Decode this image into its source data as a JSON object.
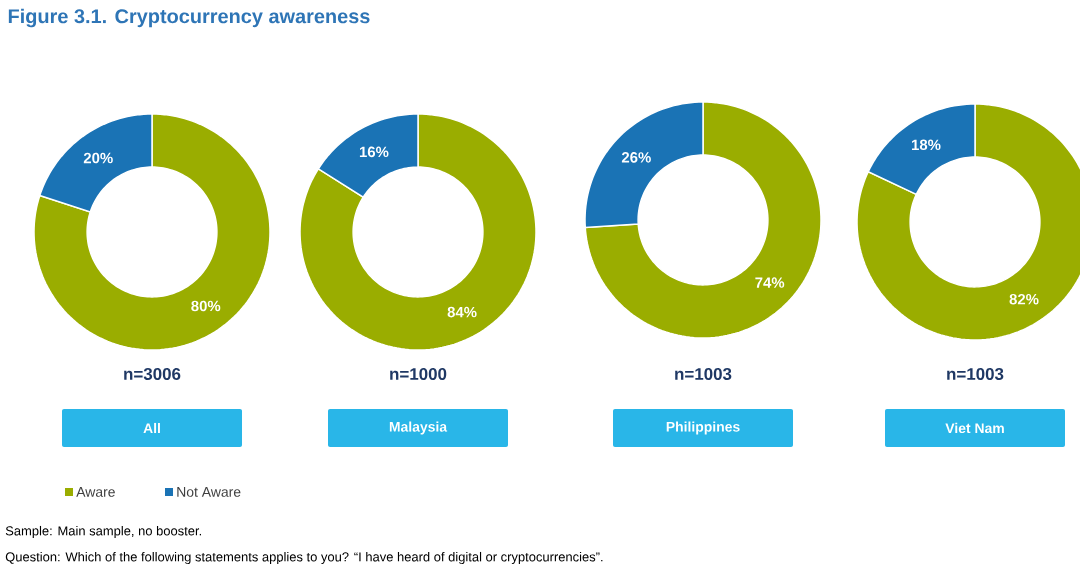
{
  "chart_data": [
    {
      "type": "donut",
      "title": "All",
      "subtitle": "n=3006",
      "categories": [
        "Aware",
        "Not Aware"
      ],
      "values": [
        80,
        20
      ],
      "colors": [
        "#9aad00",
        "#1a73b5"
      ],
      "value_labels": [
        "80%",
        "20%"
      ],
      "legend": "bottom",
      "annotations": [
        "Figure 3.1. Cryptocurrency awareness",
        "Sample: Main sample, no booster.",
        "Question: Which of the following statements applies to you? “I have heard of digital or cryptocurrencies”."
      ]
    },
    {
      "type": "donut",
      "title": "Malaysia",
      "subtitle": "n=1000",
      "categories": [
        null,
        null
      ],
      "values": [
        84,
        16
      ],
      "colors": [
        "#9aad00",
        "#1a73b5"
      ],
      "value_labels": [
        "84%",
        "16%"
      ]
    },
    {
      "type": "donut",
      "title": "Philippines",
      "subtitle": "n=1003",
      "categories": [
        null,
        null
      ],
      "values": [
        74,
        26
      ],
      "colors": [
        "#9aad00",
        "#1a73b5"
      ],
      "value_labels": [
        "74%",
        "26%"
      ]
    },
    {
      "type": "donut",
      "title": "Viet Nam",
      "subtitle": "n=1003",
      "categories": [
        null,
        null
      ],
      "values": [
        82,
        18
      ],
      "colors": [
        "#9aad00",
        "#1a73b5"
      ],
      "value_labels": [
        "82%",
        "18%"
      ]
    }
  ]
}
